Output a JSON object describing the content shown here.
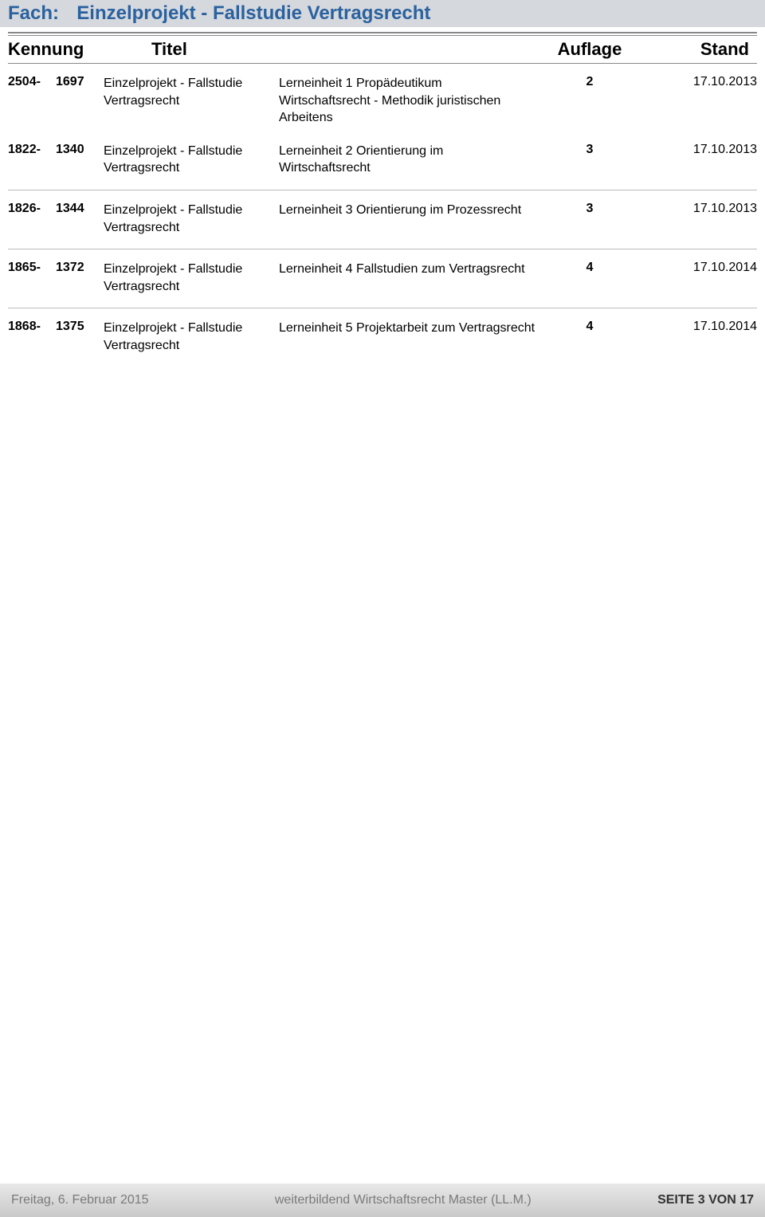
{
  "fach": {
    "label_prefix": "Fach:",
    "title": "Einzelprojekt - Fallstudie Vertragsrecht"
  },
  "headers": {
    "kennung": "Kennung",
    "titel": "Titel",
    "auflage": "Auflage",
    "stand": "Stand"
  },
  "rows": [
    {
      "kennung_a": "2504-",
      "kennung_b": "1697",
      "name": "Einzelprojekt - Fallstudie Vertragsrecht",
      "titel": "Lerneinheit 1 Propädeutikum Wirtschaftsrecht - Methodik juristischen Arbeitens",
      "auflage": "2",
      "stand": "17.10.2013"
    },
    {
      "kennung_a": "1822-",
      "kennung_b": "1340",
      "name": "Einzelprojekt - Fallstudie Vertragsrecht",
      "titel": "Lerneinheit 2 Orientierung im Wirtschaftsrecht",
      "auflage": "3",
      "stand": "17.10.2013"
    },
    {
      "kennung_a": "1826-",
      "kennung_b": "1344",
      "name": "Einzelprojekt - Fallstudie Vertragsrecht",
      "titel": "Lerneinheit 3 Orientierung im Prozessrecht",
      "auflage": "3",
      "stand": "17.10.2013"
    },
    {
      "kennung_a": "1865-",
      "kennung_b": "1372",
      "name": "Einzelprojekt - Fallstudie Vertragsrecht",
      "titel": "Lerneinheit 4 Fallstudien zum Vertragsrecht",
      "auflage": "4",
      "stand": "17.10.2014"
    },
    {
      "kennung_a": "1868-",
      "kennung_b": "1375",
      "name": "Einzelprojekt - Fallstudie Vertragsrecht",
      "titel": "Lerneinheit 5 Projektarbeit zum Vertragsrecht",
      "auflage": "4",
      "stand": "17.10.2014"
    }
  ],
  "separators_after_index": [
    1,
    2,
    3
  ],
  "footer": {
    "date": "Freitag, 6. Februar 2015",
    "middle": "weiterbildend Wirtschaftsrecht Master (LL.M.)",
    "page": "SEITE 3 VON 17"
  },
  "colors": {
    "band_bg": "#d5d8dd",
    "band_text": "#2a619e",
    "line": "#888888",
    "sep_line": "#bbbbbb",
    "footer_text_muted": "#7a7a7a",
    "footer_text_strong": "#333333"
  }
}
